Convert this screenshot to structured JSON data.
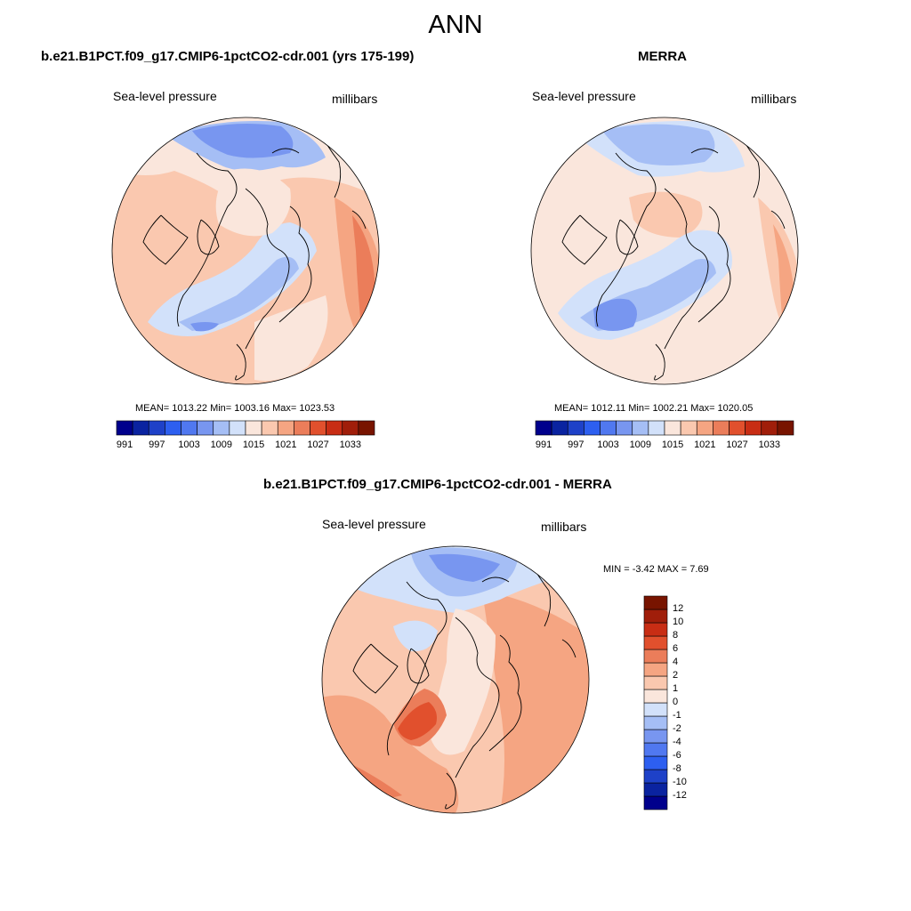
{
  "main_title": "ANN",
  "panels": [
    {
      "title": "b.e21.B1PCT.f09_g17.CMIP6-1pctCO2-cdr.001 (yrs 175-199)",
      "variable": "Sea-level pressure",
      "units": "millibars",
      "stats": "MEAN= 1013.22  Min= 1003.16  Max= 1023.53"
    },
    {
      "title": "MERRA",
      "variable": "Sea-level pressure",
      "units": "millibars",
      "stats": "MEAN= 1012.11  Min= 1002.21  Max= 1020.05"
    },
    {
      "title": "b.e21.B1PCT.f09_g17.CMIP6-1pctCO2-cdr.001 - MERRA",
      "variable": "Sea-level pressure",
      "units": "millibars",
      "stats": "MIN =  -3.42 MAX =   7.69"
    }
  ],
  "abs_colorbar": {
    "colors": [
      "#00008c",
      "#0a23a0",
      "#1e41c8",
      "#2d5ff0",
      "#5078f0",
      "#7896f0",
      "#a5bef5",
      "#d2e1fa",
      "#fae6dc",
      "#fac8af",
      "#f5a582",
      "#eb7d5a",
      "#e1502d",
      "#c82d14",
      "#a01e0a",
      "#781400"
    ],
    "tick_labels": [
      "991",
      "997",
      "1003",
      "1009",
      "1015",
      "1021",
      "1027",
      "1033"
    ]
  },
  "diff_colorbar": {
    "colors": [
      "#00008c",
      "#0a23a0",
      "#1e41c8",
      "#2d5ff0",
      "#5078f0",
      "#7896f0",
      "#a5bef5",
      "#d2e1fa",
      "#fae6dc",
      "#fac8af",
      "#f5a582",
      "#eb7d5a",
      "#e1502d",
      "#c82d14",
      "#a01e0a",
      "#781400"
    ],
    "tick_labels": [
      "-12",
      "-10",
      "-8",
      "-6",
      "-4",
      "-2",
      "-1",
      "0",
      "1",
      "2",
      "4",
      "6",
      "8",
      "10",
      "12"
    ]
  }
}
